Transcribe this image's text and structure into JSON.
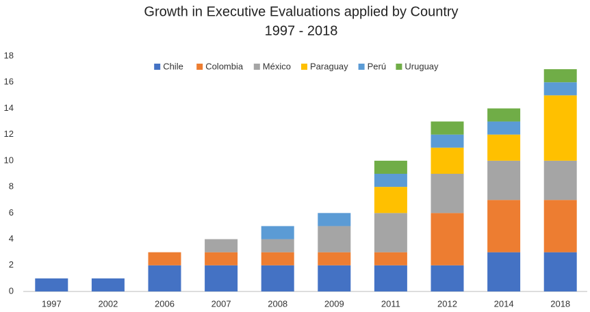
{
  "chart_data": {
    "type": "stacked_bar",
    "title": "Growth in Executive Evaluations applied by Country",
    "subtitle": "1997 - 2018",
    "categories": [
      "1997",
      "2002",
      "2006",
      "2007",
      "2008",
      "2009",
      "2011",
      "2012",
      "2014",
      "2018"
    ],
    "series": [
      {
        "name": "Chile",
        "color": "#4472c4",
        "values": [
          1,
          1,
          2,
          2,
          2,
          2,
          2,
          2,
          3,
          3
        ]
      },
      {
        "name": "Colombia",
        "color": "#ed7d31",
        "values": [
          0,
          0,
          1,
          1,
          1,
          1,
          1,
          4,
          4,
          4
        ]
      },
      {
        "name": "México",
        "color": "#a5a5a5",
        "values": [
          0,
          0,
          0,
          1,
          1,
          2,
          3,
          3,
          3,
          3
        ]
      },
      {
        "name": "Paraguay",
        "color": "#ffc000",
        "values": [
          0,
          0,
          0,
          0,
          0,
          0,
          2,
          2,
          2,
          5
        ]
      },
      {
        "name": "Perú",
        "color": "#5b9bd5",
        "values": [
          0,
          0,
          0,
          0,
          1,
          1,
          1,
          1,
          1,
          1
        ]
      },
      {
        "name": "Uruguay",
        "color": "#70ad47",
        "values": [
          0,
          0,
          0,
          0,
          0,
          0,
          1,
          1,
          1,
          1
        ]
      }
    ],
    "ylim": [
      0,
      18
    ],
    "yticks": [
      0,
      2,
      4,
      6,
      8,
      10,
      12,
      14,
      16,
      18
    ],
    "grid": false,
    "legend": "top"
  }
}
